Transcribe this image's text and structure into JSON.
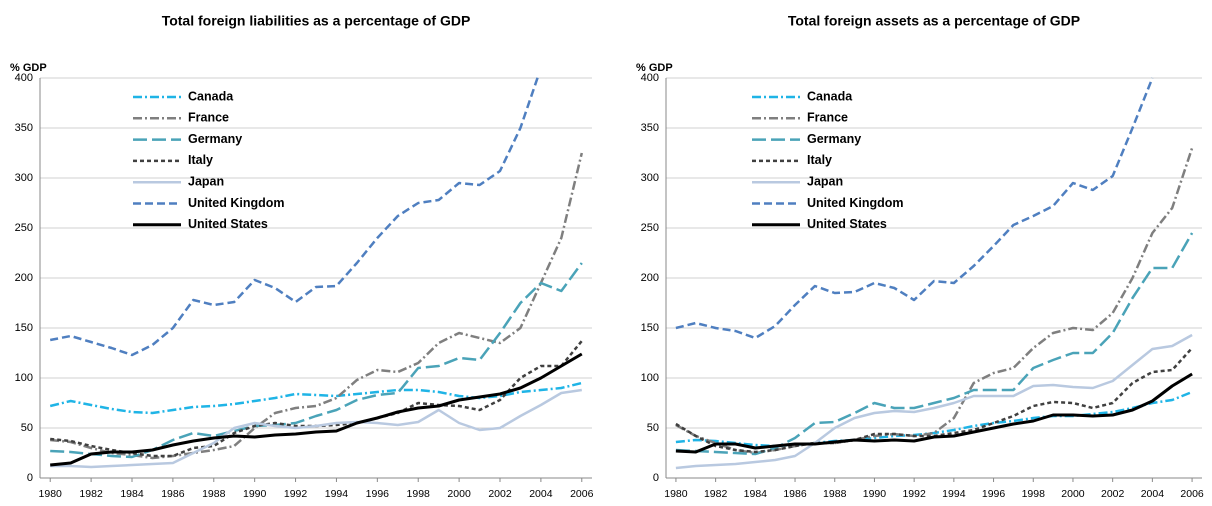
{
  "chart_data": [
    {
      "type": "line",
      "title": "Total foreign liabilities as a percentage of GDP",
      "ylabel": "% GDP",
      "x": [
        1980,
        1981,
        1982,
        1983,
        1984,
        1985,
        1986,
        1987,
        1988,
        1989,
        1990,
        1991,
        1992,
        1993,
        1994,
        1995,
        1996,
        1997,
        1998,
        1999,
        2000,
        2001,
        2002,
        2003,
        2004,
        2005,
        2006
      ],
      "xlim": [
        1979.5,
        2006.5
      ],
      "xticks": [
        1980,
        1982,
        1984,
        1986,
        1988,
        1990,
        1992,
        1994,
        1996,
        1998,
        2000,
        2002,
        2004,
        2006
      ],
      "ylim": [
        0,
        400
      ],
      "yticks": [
        0,
        50,
        100,
        150,
        200,
        250,
        300,
        350,
        400
      ],
      "grid": true,
      "legend": "upper left",
      "series": [
        {
          "name": "Canada",
          "color": "#1fb4e6",
          "dash": "dash-dot",
          "values": [
            72,
            77,
            73,
            69,
            66,
            65,
            68,
            71,
            72,
            74,
            77,
            80,
            84,
            83,
            82,
            84,
            86,
            88,
            88,
            86,
            82,
            80,
            82,
            86,
            88,
            90,
            95
          ]
        },
        {
          "name": "France",
          "color": "#7f7f7f",
          "dash": "dash-dot",
          "values": [
            38,
            36,
            30,
            25,
            23,
            20,
            22,
            25,
            28,
            32,
            50,
            65,
            70,
            72,
            80,
            98,
            108,
            106,
            115,
            135,
            145,
            140,
            135,
            150,
            195,
            240,
            325
          ]
        },
        {
          "name": "Germany",
          "color": "#4aa3b8",
          "dash": "long-dash",
          "values": [
            27,
            26,
            24,
            22,
            21,
            28,
            38,
            45,
            42,
            47,
            52,
            53,
            55,
            62,
            68,
            78,
            83,
            85,
            110,
            112,
            120,
            118,
            145,
            175,
            195,
            187,
            215
          ]
        },
        {
          "name": "Italy",
          "color": "#404040",
          "dash": "short-dash",
          "values": [
            39,
            37,
            32,
            28,
            25,
            22,
            22,
            30,
            32,
            45,
            52,
            55,
            52,
            52,
            53,
            55,
            60,
            65,
            75,
            73,
            72,
            68,
            78,
            100,
            112,
            112,
            137
          ]
        },
        {
          "name": "Japan",
          "color": "#b9c9e0",
          "dash": "solid",
          "values": [
            12,
            12,
            11,
            12,
            13,
            14,
            15,
            25,
            35,
            50,
            55,
            52,
            50,
            52,
            55,
            56,
            55,
            53,
            56,
            68,
            55,
            48,
            50,
            62,
            73,
            85,
            88
          ]
        },
        {
          "name": "United Kingdom",
          "color": "#4f7fc0",
          "dash": "dash",
          "values": [
            138,
            142,
            136,
            130,
            123,
            133,
            150,
            178,
            173,
            176,
            198,
            190,
            176,
            191,
            192,
            215,
            240,
            262,
            275,
            278,
            295,
            293,
            307,
            350,
            410,
            null,
            null
          ]
        },
        {
          "name": "United States",
          "color": "#000000",
          "dash": "solid",
          "values": [
            13,
            15,
            24,
            26,
            26,
            28,
            33,
            37,
            40,
            42,
            41,
            43,
            44,
            46,
            47,
            55,
            60,
            66,
            70,
            72,
            78,
            81,
            84,
            90,
            100,
            112,
            124
          ]
        }
      ]
    },
    {
      "type": "line",
      "title": "Total foreign assets as a percentage of GDP",
      "ylabel": "% GDP",
      "x": [
        1980,
        1981,
        1982,
        1983,
        1984,
        1985,
        1986,
        1987,
        1988,
        1989,
        1990,
        1991,
        1992,
        1993,
        1994,
        1995,
        1996,
        1997,
        1998,
        1999,
        2000,
        2001,
        2002,
        2003,
        2004,
        2005,
        2006
      ],
      "xlim": [
        1979.5,
        2006.5
      ],
      "xticks": [
        1980,
        1982,
        1984,
        1986,
        1988,
        1990,
        1992,
        1994,
        1996,
        1998,
        2000,
        2002,
        2004,
        2006
      ],
      "ylim": [
        0,
        400
      ],
      "yticks": [
        0,
        50,
        100,
        150,
        200,
        250,
        300,
        350,
        400
      ],
      "grid": true,
      "legend": "upper left",
      "series": [
        {
          "name": "Canada",
          "color": "#1fb4e6",
          "dash": "dash-dot",
          "values": [
            36,
            38,
            37,
            35,
            33,
            32,
            33,
            35,
            37,
            38,
            40,
            42,
            43,
            45,
            48,
            52,
            55,
            57,
            60,
            62,
            62,
            64,
            66,
            70,
            75,
            78,
            86
          ]
        },
        {
          "name": "France",
          "color": "#7f7f7f",
          "dash": "dash-dot",
          "values": [
            53,
            42,
            35,
            28,
            25,
            28,
            32,
            35,
            35,
            38,
            42,
            44,
            42,
            45,
            60,
            95,
            105,
            110,
            130,
            145,
            150,
            148,
            165,
            200,
            245,
            270,
            330
          ]
        },
        {
          "name": "Germany",
          "color": "#4aa3b8",
          "dash": "long-dash",
          "values": [
            28,
            27,
            26,
            25,
            24,
            30,
            40,
            55,
            56,
            65,
            75,
            70,
            70,
            75,
            80,
            88,
            88,
            88,
            110,
            118,
            125,
            125,
            145,
            180,
            210,
            210,
            245
          ]
        },
        {
          "name": "Italy",
          "color": "#404040",
          "dash": "short-dash",
          "values": [
            54,
            42,
            32,
            28,
            26,
            28,
            32,
            35,
            35,
            38,
            44,
            44,
            42,
            42,
            45,
            48,
            55,
            62,
            72,
            76,
            75,
            70,
            75,
            95,
            106,
            108,
            130
          ]
        },
        {
          "name": "Japan",
          "color": "#b9c9e0",
          "dash": "solid",
          "values": [
            10,
            12,
            13,
            14,
            16,
            18,
            22,
            35,
            50,
            60,
            65,
            67,
            66,
            70,
            75,
            82,
            82,
            82,
            92,
            93,
            91,
            90,
            97,
            113,
            129,
            132,
            143
          ]
        },
        {
          "name": "United Kingdom",
          "color": "#4f7fc0",
          "dash": "dash",
          "values": [
            150,
            155,
            150,
            147,
            140,
            152,
            173,
            192,
            185,
            186,
            195,
            190,
            178,
            197,
            195,
            212,
            232,
            253,
            262,
            272,
            295,
            288,
            302,
            350,
            400,
            null,
            null
          ]
        },
        {
          "name": "United States",
          "color": "#000000",
          "dash": "solid",
          "values": [
            27,
            26,
            34,
            34,
            30,
            32,
            34,
            34,
            36,
            38,
            37,
            38,
            37,
            41,
            42,
            46,
            50,
            54,
            57,
            63,
            63,
            62,
            63,
            68,
            77,
            92,
            104
          ]
        }
      ]
    }
  ]
}
